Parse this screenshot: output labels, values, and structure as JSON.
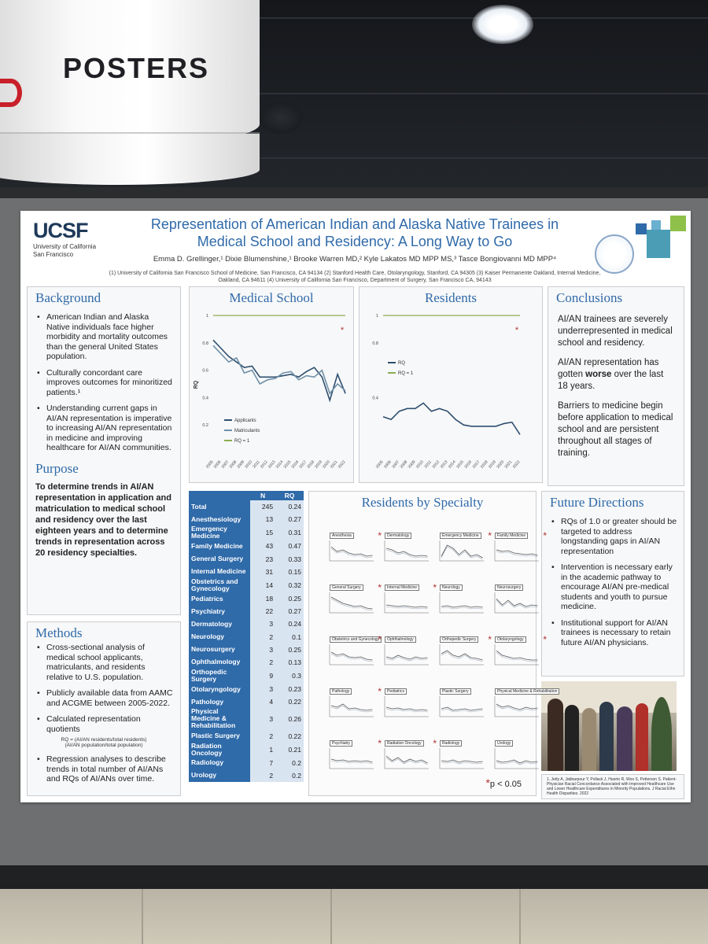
{
  "venue": {
    "sign_text": "POSTERS"
  },
  "poster": {
    "logo": {
      "name": "UCSF",
      "subtitle_line1": "University of California",
      "subtitle_line2": "San Francisco"
    },
    "title_line1": "Representation of American Indian and Alaska Native Trainees in",
    "title_line2": "Medical School and Residency: A Long Way to Go",
    "authors": "Emma D. Grellinger,¹ Dixie Blumenshine,¹ Brooke Warren MD,² Kyle Lakatos MD MPP MS,³ Tasce Bongiovanni MD MPP⁴",
    "affiliations_line1": "(1) University of California San Francisco School of Medicine, San Francisco, CA 94134 (2) Stanford Health Care, Otolaryngology, Stanford, CA 94305 (3) Kaiser Permanente Oakland, Internal Medicine,",
    "affiliations_line2": "Oakland, CA 94611 (4) University of California San Francisco, Department of Surgery, San Francisco CA, 94143",
    "background": {
      "heading": "Background",
      "bullets": [
        "American Indian and Alaska Native individuals face higher morbidity and mortality outcomes than the general United States population.",
        "Culturally concordant care improves outcomes for minoritized patients.¹",
        "Understanding current gaps in AI/AN representation is imperative to increasing AI/AN representation in medicine and improving healthcare for AI/AN communities."
      ]
    },
    "purpose": {
      "heading": "Purpose",
      "text": "To determine trends in AI/AN representation in application and matriculation to medical school and residency over the last eighteen years and to determine trends in representation across 20 residency specialties."
    },
    "methods": {
      "heading": "Methods",
      "bullets": [
        "Cross-sectional analysis of medical school applicants, matriculants, and residents relative to U.S. population.",
        "Publicly available data from AAMC and ACGME between 2005-2022.",
        "Calculated representation quotients",
        "Regression analyses to describe trends in total number of AI/ANs and RQs of AI/ANs over time."
      ],
      "formula_line1": "RQ = (AI/AN residents/total residents)",
      "formula_line2": "(AI/AN population/total population)"
    },
    "conclusions": {
      "heading": "Conclusions",
      "p1": "AI/AN trainees are severely underrepresented in medical school and residency.",
      "p2_before": "AI/AN representation has gotten ",
      "p2_bold": "worse",
      "p2_after": " over the last 18 years.",
      "p3": "Barriers to medicine begin before application to medical school and are persistent throughout all stages of training."
    },
    "future": {
      "heading": "Future Directions",
      "bullets": [
        "RQs of 1.0 or greater should be targeted to address longstanding gaps in AI/AN representation",
        "Intervention is necessary early in the academic pathway to encourage AI/AN pre-medical students and youth to pursue medicine.",
        "Institutional support for AI/AN trainees is necessary to retain future AI/AN physicians."
      ]
    },
    "reference": "1. Jetty A, Jabbarpour Y, Pollack J, Huerto R, Woo S, Petterson S. Patient-Physician Racial Concordance Associated with Improved Healthcare Use and Lower Healthcare Expenditures in Minority Populations. J Racial Ethn Health Disparities. 2022",
    "significance": "p < 0.05",
    "specialty_heading": "Residents by Specialty",
    "table_headers": [
      "",
      "N",
      "RQ"
    ],
    "table_rows": [
      [
        "Total",
        "245",
        "0.24"
      ],
      [
        "Anesthesiology",
        "13",
        "0.27"
      ],
      [
        "Emergency Medicine",
        "15",
        "0.31"
      ],
      [
        "Family Medicine",
        "43",
        "0.47"
      ],
      [
        "General Surgery",
        "23",
        "0.33"
      ],
      [
        "Internal Medicine",
        "31",
        "0.15"
      ],
      [
        "Obstetrics and Gynecology",
        "14",
        "0.32"
      ],
      [
        "Pediatrics",
        "18",
        "0.25"
      ],
      [
        "Psychiatry",
        "22",
        "0.27"
      ],
      [
        "Dermatology",
        "3",
        "0.24"
      ],
      [
        "Neurology",
        "2",
        "0.1"
      ],
      [
        "Neurosurgery",
        "3",
        "0.25"
      ],
      [
        "Ophthalmology",
        "2",
        "0.13"
      ],
      [
        "Orthopedic Surgery",
        "9",
        "0.3"
      ],
      [
        "Otolaryngology",
        "3",
        "0.23"
      ],
      [
        "Pathology",
        "4",
        "0.22"
      ],
      [
        "Physical Medicine & Rehabilitation",
        "3",
        "0.26"
      ],
      [
        "Plastic Surgery",
        "2",
        "0.22"
      ],
      [
        "Radiation Oncology",
        "1",
        "0.21"
      ],
      [
        "Radiology",
        "7",
        "0.2"
      ],
      [
        "Urology",
        "2",
        "0.2"
      ]
    ],
    "mini_charts": [
      {
        "label": "Anesthesia",
        "sig": true
      },
      {
        "label": "Dermatology",
        "sig": false
      },
      {
        "label": "Emergency Medicine",
        "sig": true
      },
      {
        "label": "Family Medicine",
        "sig": true
      },
      {
        "label": "General Surgery",
        "sig": true
      },
      {
        "label": "Internal Medicine",
        "sig": true
      },
      {
        "label": "Neurology",
        "sig": false
      },
      {
        "label": "Neurosurgery",
        "sig": false
      },
      {
        "label": "Obstetrics and Gynecology",
        "sig": true
      },
      {
        "label": "Ophthalmology",
        "sig": false
      },
      {
        "label": "Orthopedic Surgery",
        "sig": true
      },
      {
        "label": "Otolaryngology",
        "sig": true
      },
      {
        "label": "Pathology",
        "sig": true
      },
      {
        "label": "Pediatrics",
        "sig": false
      },
      {
        "label": "Plastic Surgery",
        "sig": false
      },
      {
        "label": "Physical Medicine & Rehabilitation",
        "sig": false
      },
      {
        "label": "Psychiatry",
        "sig": true
      },
      {
        "label": "Radiation Oncology",
        "sig": true
      },
      {
        "label": "Radiology",
        "sig": false
      },
      {
        "label": "Urology",
        "sig": false
      }
    ]
  },
  "chart_data": [
    {
      "type": "line",
      "title": "Medical School",
      "ylabel": "RQ",
      "ylim": [
        0,
        1
      ],
      "yticks": [
        "0.2",
        "0.4",
        "0.6",
        "0.8",
        "1"
      ],
      "x": [
        "2005",
        "2006",
        "2007",
        "2008",
        "2009",
        "2010",
        "2011",
        "2012",
        "2013",
        "2014",
        "2015",
        "2016",
        "2017",
        "2018",
        "2019",
        "2020",
        "2021",
        "2022"
      ],
      "series": [
        {
          "name": "Applicants",
          "color": "#2f4f6f",
          "values": [
            0.82,
            0.76,
            0.7,
            0.66,
            0.62,
            0.63,
            0.55,
            0.55,
            0.55,
            0.56,
            0.57,
            0.55,
            0.59,
            0.62,
            0.55,
            0.38,
            0.57,
            0.43
          ]
        },
        {
          "name": "Matriculants",
          "color": "#7090a8",
          "values": [
            0.78,
            0.72,
            0.66,
            0.69,
            0.58,
            0.6,
            0.5,
            0.53,
            0.54,
            0.58,
            0.59,
            0.53,
            0.56,
            0.55,
            0.6,
            0.43,
            0.5,
            0.45
          ]
        },
        {
          "name": "RQ = 1",
          "color": "#8aad52",
          "values": [
            1,
            1,
            1,
            1,
            1,
            1,
            1,
            1,
            1,
            1,
            1,
            1,
            1,
            1,
            1,
            1,
            1,
            1
          ]
        }
      ],
      "significance_marker": "*",
      "legend": "left-bottom"
    },
    {
      "type": "line",
      "title": "Residents",
      "ylabel": "",
      "ylim": [
        0,
        1
      ],
      "yticks": [
        "0.4",
        "0.8",
        "1"
      ],
      "x": [
        "2005",
        "2006",
        "2007",
        "2008",
        "2009",
        "2010",
        "2011",
        "2012",
        "2013",
        "2014",
        "2015",
        "2016",
        "2017",
        "2018",
        "2019",
        "2020",
        "2021",
        "2022"
      ],
      "series": [
        {
          "name": "RQ",
          "color": "#2f4f6f",
          "values": [
            0.26,
            0.24,
            0.3,
            0.32,
            0.32,
            0.36,
            0.3,
            0.32,
            0.3,
            0.24,
            0.2,
            0.19,
            0.19,
            0.19,
            0.19,
            0.21,
            0.22,
            0.13
          ]
        },
        {
          "name": "RQ = 1",
          "color": "#8aad52",
          "values": [
            1,
            1,
            1,
            1,
            1,
            1,
            1,
            1,
            1,
            1,
            1,
            1,
            1,
            1,
            1,
            1,
            1,
            1
          ]
        }
      ],
      "significance_marker": "*",
      "legend": "left-middle"
    }
  ],
  "colors": {
    "title_blue": "#2f6aa9",
    "table_blue": "#2f6aa9",
    "green_line": "#8aad52",
    "star_red": "#b03030"
  }
}
